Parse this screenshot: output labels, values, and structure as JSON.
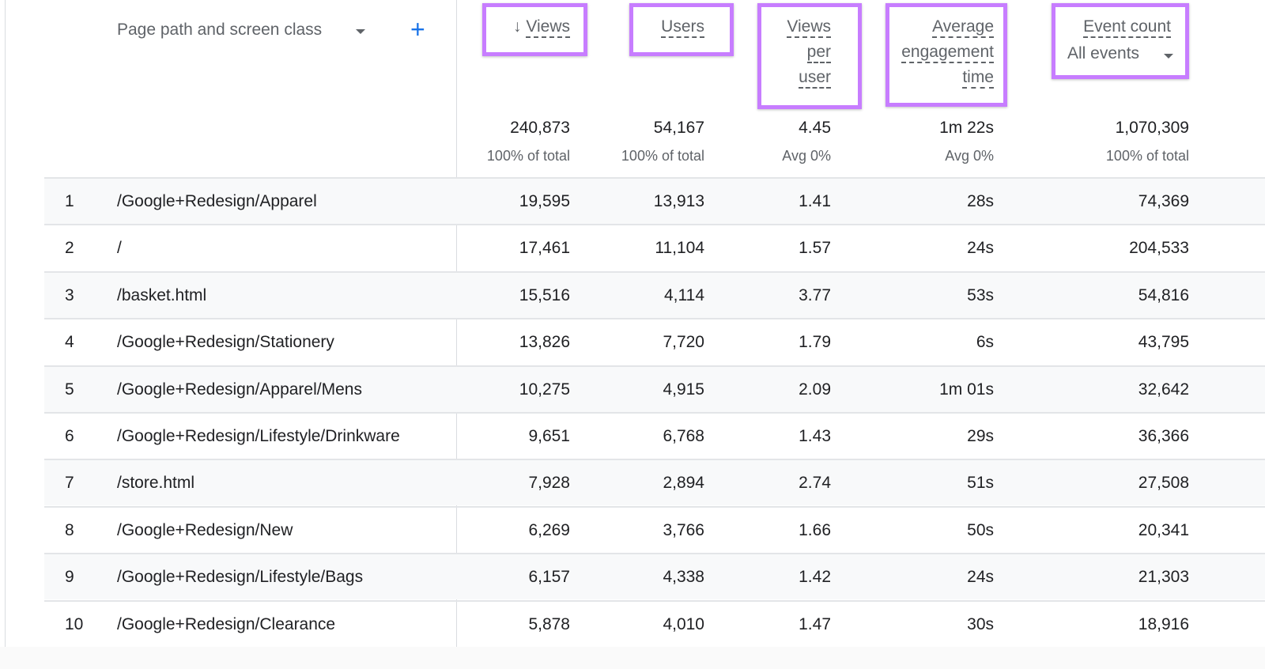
{
  "dimension": {
    "label": "Page path and screen class",
    "add_icon": "plus-icon",
    "dropdown_icon": "caret-down-icon"
  },
  "highlight_color": "#c77dff",
  "columns": [
    {
      "label": "Views",
      "sort_icon": "arrow-down-icon",
      "total": "240,873",
      "sub": "100% of total"
    },
    {
      "label": "Users",
      "total": "54,167",
      "sub": "100% of total"
    },
    {
      "label_lines": [
        "Views",
        "per",
        "user"
      ],
      "total": "4.45",
      "sub": "Avg 0%"
    },
    {
      "label_lines": [
        "Average",
        "engagement",
        "time"
      ],
      "total": "1m 22s",
      "sub": "Avg 0%"
    },
    {
      "label": "Event count",
      "selector": "All events",
      "total": "1,070,309",
      "sub": "100% of total"
    }
  ],
  "rows": [
    {
      "n": "1",
      "path": "/Google+Redesign/Apparel",
      "views": "19,595",
      "users": "13,913",
      "vpu": "1.41",
      "eng": "28s",
      "events": "74,369"
    },
    {
      "n": "2",
      "path": "/",
      "views": "17,461",
      "users": "11,104",
      "vpu": "1.57",
      "eng": "24s",
      "events": "204,533"
    },
    {
      "n": "3",
      "path": "/basket.html",
      "views": "15,516",
      "users": "4,114",
      "vpu": "3.77",
      "eng": "53s",
      "events": "54,816"
    },
    {
      "n": "4",
      "path": "/Google+Redesign/Stationery",
      "views": "13,826",
      "users": "7,720",
      "vpu": "1.79",
      "eng": "6s",
      "events": "43,795"
    },
    {
      "n": "5",
      "path": "/Google+Redesign/Apparel/Mens",
      "views": "10,275",
      "users": "4,915",
      "vpu": "2.09",
      "eng": "1m 01s",
      "events": "32,642"
    },
    {
      "n": "6",
      "path": "/Google+Redesign/Lifestyle/Drinkware",
      "views": "9,651",
      "users": "6,768",
      "vpu": "1.43",
      "eng": "29s",
      "events": "36,366"
    },
    {
      "n": "7",
      "path": "/store.html",
      "views": "7,928",
      "users": "2,894",
      "vpu": "2.74",
      "eng": "51s",
      "events": "27,508"
    },
    {
      "n": "8",
      "path": "/Google+Redesign/New",
      "views": "6,269",
      "users": "3,766",
      "vpu": "1.66",
      "eng": "50s",
      "events": "20,341"
    },
    {
      "n": "9",
      "path": "/Google+Redesign/Lifestyle/Bags",
      "views": "6,157",
      "users": "4,338",
      "vpu": "1.42",
      "eng": "24s",
      "events": "21,303"
    },
    {
      "n": "10",
      "path": "/Google+Redesign/Clearance",
      "views": "5,878",
      "users": "4,010",
      "vpu": "1.47",
      "eng": "30s",
      "events": "18,916"
    }
  ]
}
